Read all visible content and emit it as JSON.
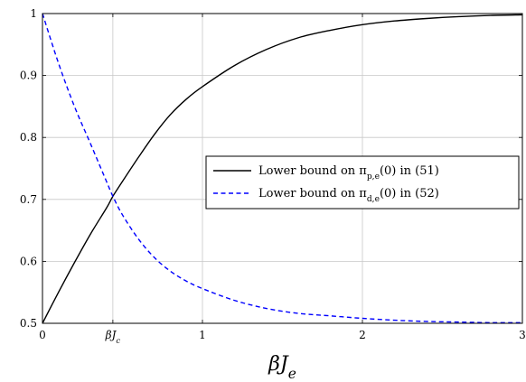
{
  "chart_data": {
    "type": "line",
    "xlabel": "βJ_e",
    "ylabel": "",
    "xlim": [
      0,
      3
    ],
    "ylim": [
      0.5,
      1
    ],
    "grid": true,
    "legend_position": "right",
    "x_ticks": [
      {
        "value": 0,
        "label": "0"
      },
      {
        "value": 0.44,
        "label": "βJ_c"
      },
      {
        "value": 1,
        "label": "1"
      },
      {
        "value": 2,
        "label": "2"
      },
      {
        "value": 3,
        "label": "3"
      }
    ],
    "y_ticks": [
      {
        "value": 0.5,
        "label": "0.5"
      },
      {
        "value": 0.6,
        "label": "0.6"
      },
      {
        "value": 0.7,
        "label": "0.7"
      },
      {
        "value": 0.8,
        "label": "0.8"
      },
      {
        "value": 0.9,
        "label": "0.9"
      },
      {
        "value": 1,
        "label": "1"
      }
    ],
    "series": [
      {
        "name": "Lower bound on π_{p,e}(0) in (51)",
        "color": "#000000",
        "dash": "solid",
        "x": [
          0,
          0.1,
          0.2,
          0.3,
          0.4,
          0.44,
          0.5,
          0.6,
          0.7,
          0.8,
          0.9,
          1.0,
          1.2,
          1.4,
          1.6,
          1.8,
          2.0,
          2.2,
          2.4,
          2.6,
          2.8,
          3.0
        ],
        "y": [
          0.5,
          0.55,
          0.598,
          0.644,
          0.686,
          0.705,
          0.729,
          0.768,
          0.805,
          0.837,
          0.862,
          0.882,
          0.916,
          0.942,
          0.961,
          0.973,
          0.982,
          0.988,
          0.992,
          0.995,
          0.997,
          0.998
        ]
      },
      {
        "name": "Lower bound on π_{d,e}(0) in (52)",
        "color": "#0000ff",
        "dash": "dashed",
        "x": [
          0,
          0.1,
          0.2,
          0.3,
          0.4,
          0.44,
          0.5,
          0.6,
          0.7,
          0.8,
          0.9,
          1.0,
          1.2,
          1.4,
          1.6,
          1.8,
          2.0,
          2.2,
          2.4,
          2.6,
          2.8,
          3.0
        ],
        "y": [
          1.0,
          0.92,
          0.85,
          0.79,
          0.729,
          0.705,
          0.675,
          0.636,
          0.606,
          0.584,
          0.568,
          0.556,
          0.537,
          0.524,
          0.516,
          0.512,
          0.508,
          0.505,
          0.503,
          0.502,
          0.501,
          0.501
        ]
      }
    ]
  }
}
